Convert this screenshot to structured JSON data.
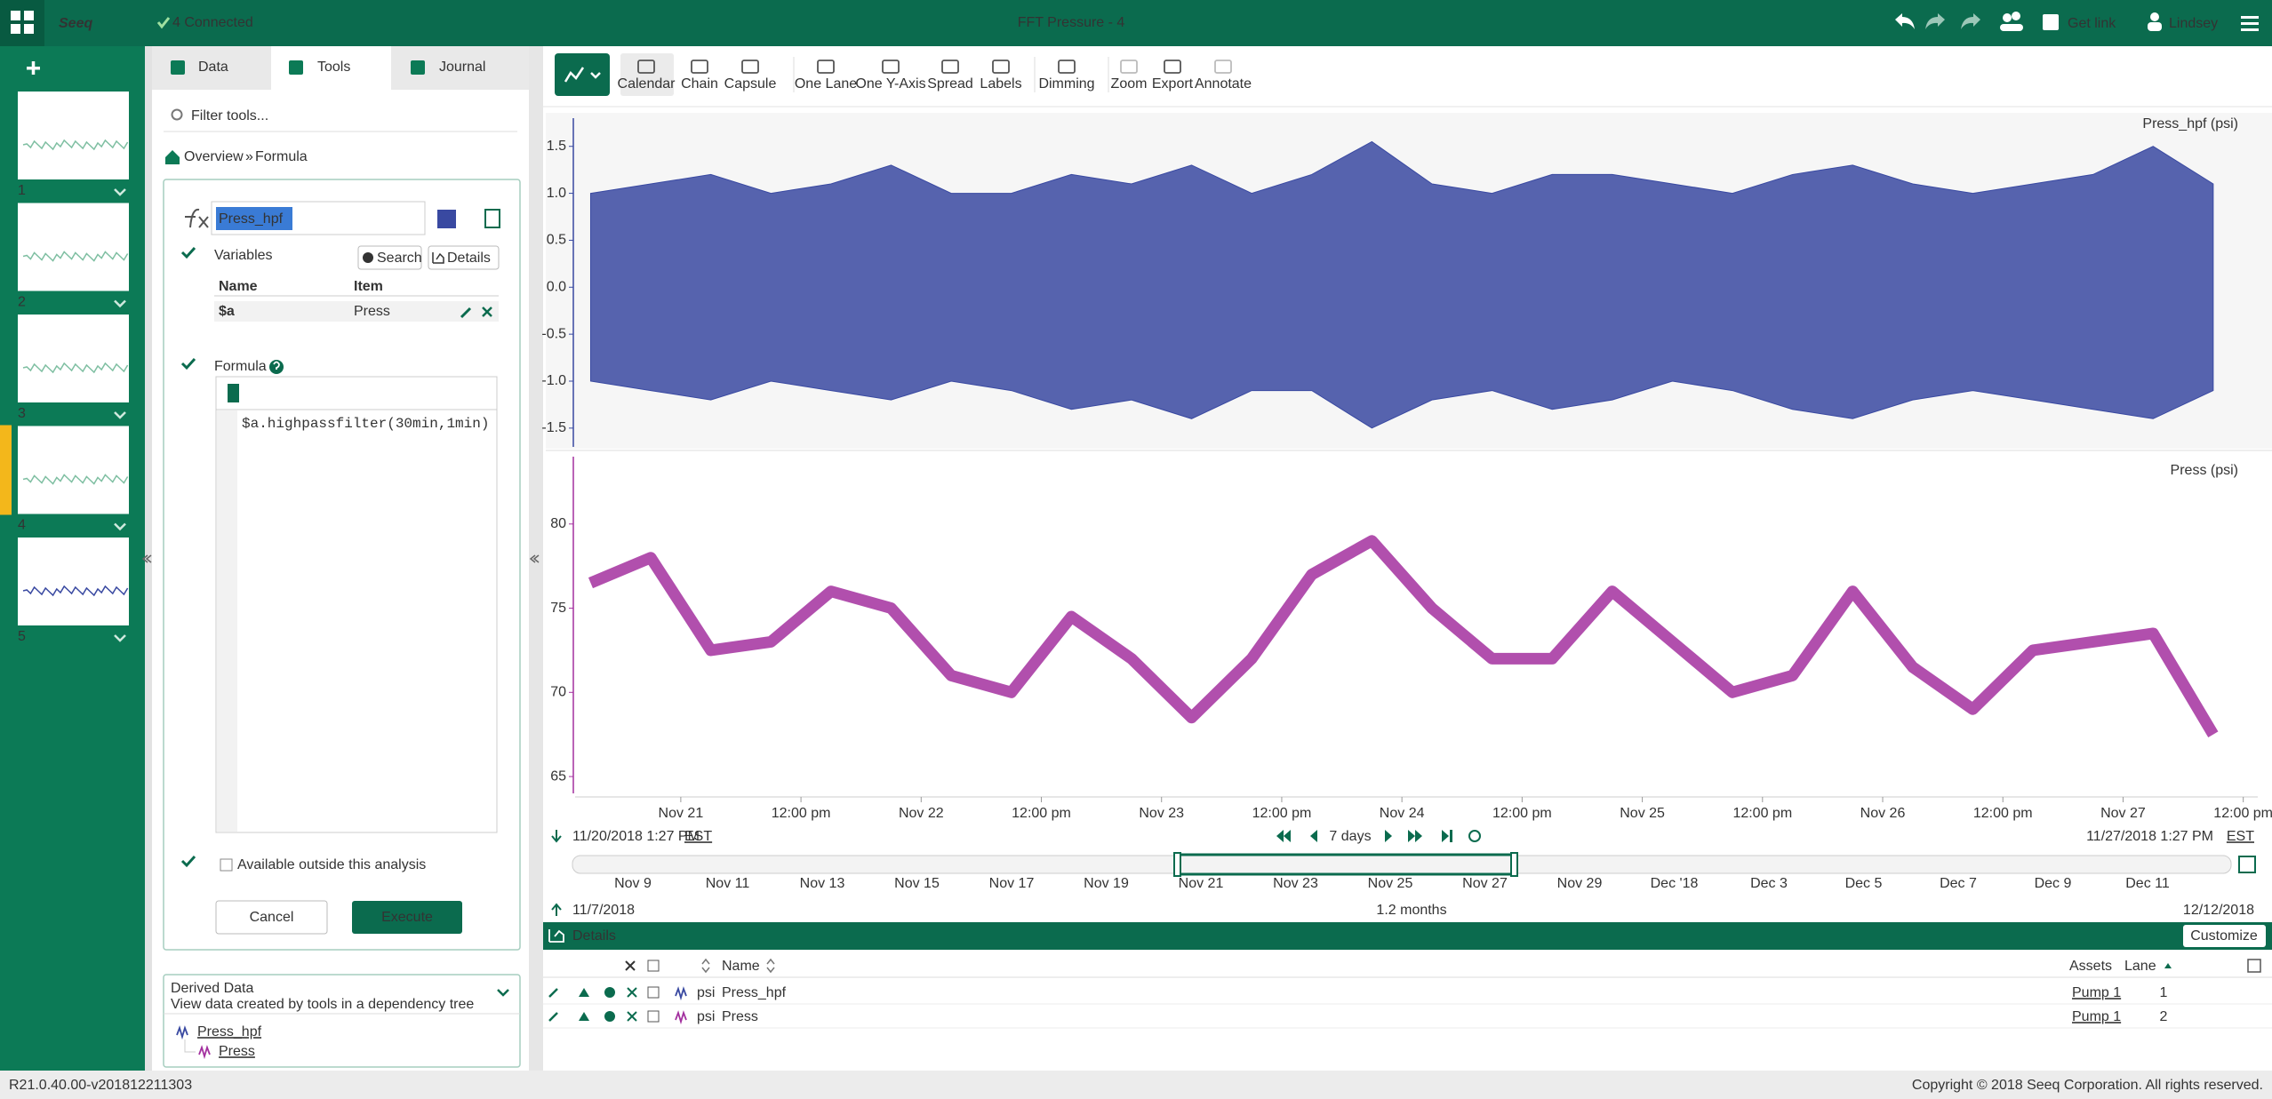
{
  "header": {
    "logo": "Seeq",
    "connected": "4 Connected",
    "title": "FFT Pressure - 4",
    "get_link": "Get link",
    "user": "Lindsey"
  },
  "worksheets": [
    "1",
    "2",
    "3",
    "4",
    "5"
  ],
  "tabs": [
    "Data",
    "Tools",
    "Journal"
  ],
  "tool_panel": {
    "filter_placeholder": "Filter tools...",
    "breadcrumb": [
      "Overview",
      "»",
      "Formula"
    ]
  },
  "formula_tool": {
    "name": "Press_hpf",
    "color": "#3949a1",
    "variables_label": "Variables",
    "search": "Search",
    "details": "Details",
    "columns": [
      "Name",
      "Item"
    ],
    "variables": [
      [
        "$a",
        "Press"
      ]
    ],
    "formula_label": "Formula",
    "formula": "$a.highpassfilter(30min,1min)",
    "available_outside": "Available outside this analysis",
    "cancel": "Cancel",
    "execute": "Execute"
  },
  "derived_data": {
    "title": "Derived Data",
    "subtitle": "View data created by tools in a dependency tree",
    "items": [
      "Press_hpf",
      "Press"
    ]
  },
  "toolbar": [
    "Calendar",
    "Chain",
    "Capsule",
    "One Lane",
    "One Y-Axis",
    "Spread",
    "Labels",
    "Dimming",
    "Zoom",
    "Export",
    "Annotate"
  ],
  "trend": {
    "xlim": [
      "2018-11-20T13:27",
      "2018-11-27T13:27"
    ],
    "xticks": [
      {
        "value": "2018-11-21T00:00",
        "label": "Nov 21"
      },
      {
        "value": "2018-11-21T12:00",
        "label": "12:00 pm"
      },
      {
        "value": "2018-11-22T00:00",
        "label": "Nov 22"
      },
      {
        "value": "2018-11-22T12:00",
        "label": "12:00 pm"
      },
      {
        "value": "2018-11-23T00:00",
        "label": "Nov 23"
      },
      {
        "value": "2018-11-23T12:00",
        "label": "12:00 pm"
      },
      {
        "value": "2018-11-24T00:00",
        "label": "Nov 24"
      },
      {
        "value": "2018-11-24T12:00",
        "label": "12:00 pm"
      },
      {
        "value": "2018-11-25T00:00",
        "label": "Nov 25"
      },
      {
        "value": "2018-11-25T12:00",
        "label": "12:00 pm"
      },
      {
        "value": "2018-11-26T00:00",
        "label": "Nov 26"
      },
      {
        "value": "2018-11-26T12:00",
        "label": "12:00 pm"
      },
      {
        "value": "2018-11-27T00:00",
        "label": "Nov 27"
      },
      {
        "value": "2018-11-27T12:00",
        "label": "12:00 pm"
      }
    ],
    "x": [
      "2018-11-20T15:00",
      "2018-11-20T21:00",
      "2018-11-21T03:00",
      "2018-11-21T09:00",
      "2018-11-21T15:00",
      "2018-11-21T21:00",
      "2018-11-22T03:00",
      "2018-11-22T09:00",
      "2018-11-22T15:00",
      "2018-11-22T21:00",
      "2018-11-23T03:00",
      "2018-11-23T09:00",
      "2018-11-23T15:00",
      "2018-11-23T21:00",
      "2018-11-24T03:00",
      "2018-11-24T09:00",
      "2018-11-24T15:00",
      "2018-11-24T21:00",
      "2018-11-25T03:00",
      "2018-11-25T09:00",
      "2018-11-25T15:00",
      "2018-11-25T21:00",
      "2018-11-26T03:00",
      "2018-11-26T09:00",
      "2018-11-26T15:00",
      "2018-11-26T21:00",
      "2018-11-27T03:00",
      "2018-11-27T09:00"
    ],
    "lanes": [
      {
        "type": "band",
        "title": "Press_hpf (psi)",
        "color": "#3949a1",
        "ylim": [
          -1.7,
          1.8
        ],
        "yticks": [
          1.5,
          {
            "value": 1,
            "label": "1.0"
          },
          0.5,
          {
            "value": 0,
            "label": "0.0"
          },
          -0.5,
          {
            "value": -1,
            "label": "-1.0"
          },
          -1.5
        ],
        "upper": [
          1.0,
          1.1,
          1.2,
          1.0,
          1.1,
          1.3,
          1.0,
          1.0,
          1.2,
          1.1,
          1.3,
          1.0,
          1.2,
          1.55,
          1.1,
          1.0,
          1.2,
          1.2,
          1.1,
          1.0,
          1.2,
          1.3,
          1.1,
          1.0,
          1.1,
          1.2,
          1.5,
          1.1
        ],
        "lower": [
          -1.0,
          -1.1,
          -1.2,
          -1.0,
          -1.1,
          -1.2,
          -1.0,
          -1.1,
          -1.3,
          -1.2,
          -1.4,
          -1.1,
          -1.1,
          -1.5,
          -1.2,
          -1.1,
          -1.3,
          -1.2,
          -1.0,
          -1.1,
          -1.3,
          -1.4,
          -1.2,
          -1.1,
          -1.2,
          -1.3,
          -1.4,
          -1.1
        ]
      },
      {
        "type": "line",
        "title": "Press (psi)",
        "color": "#a3309f",
        "ylim": [
          64,
          84
        ],
        "yticks": [
          65,
          70,
          75,
          80
        ],
        "values": [
          76.5,
          78,
          72.5,
          73,
          76,
          75,
          71,
          70,
          74.5,
          72,
          68.5,
          72,
          77,
          79,
          75,
          72,
          72,
          76,
          73,
          70,
          71,
          76,
          71.5,
          69,
          72.5,
          73,
          73.5,
          67.5
        ]
      }
    ]
  },
  "range": {
    "start": "11/20/2018 1:27 PM",
    "start_tz": "EST",
    "duration": "7 days",
    "end": "11/27/2018 1:27 PM",
    "end_tz": "EST"
  },
  "navigator": {
    "ticks": [
      "Nov 9",
      "Nov 11",
      "Nov 13",
      "Nov 15",
      "Nov 17",
      "Nov 19",
      "Nov 21",
      "Nov 23",
      "Nov 25",
      "Nov 27",
      "Nov 29",
      "Dec '18",
      "Dec 3",
      "Dec 5",
      "Dec 7",
      "Dec 9",
      "Dec 11"
    ],
    "start": "11/7/2018",
    "span": "1.2 months",
    "end": "12/12/2018"
  },
  "details": {
    "title": "Details",
    "customize": "Customize",
    "columns": [
      "Name",
      "Assets",
      "Lane"
    ],
    "rows": [
      {
        "unit": "psi",
        "name": "Press_hpf",
        "asset": "Pump 1",
        "lane": 1
      },
      {
        "unit": "psi",
        "name": "Press",
        "asset": "Pump 1",
        "lane": 2
      }
    ]
  },
  "footer": {
    "version": "R21.0.40.00-v201812211303",
    "copyright": "Copyright © 2018 Seeq Corporation. All rights reserved."
  }
}
